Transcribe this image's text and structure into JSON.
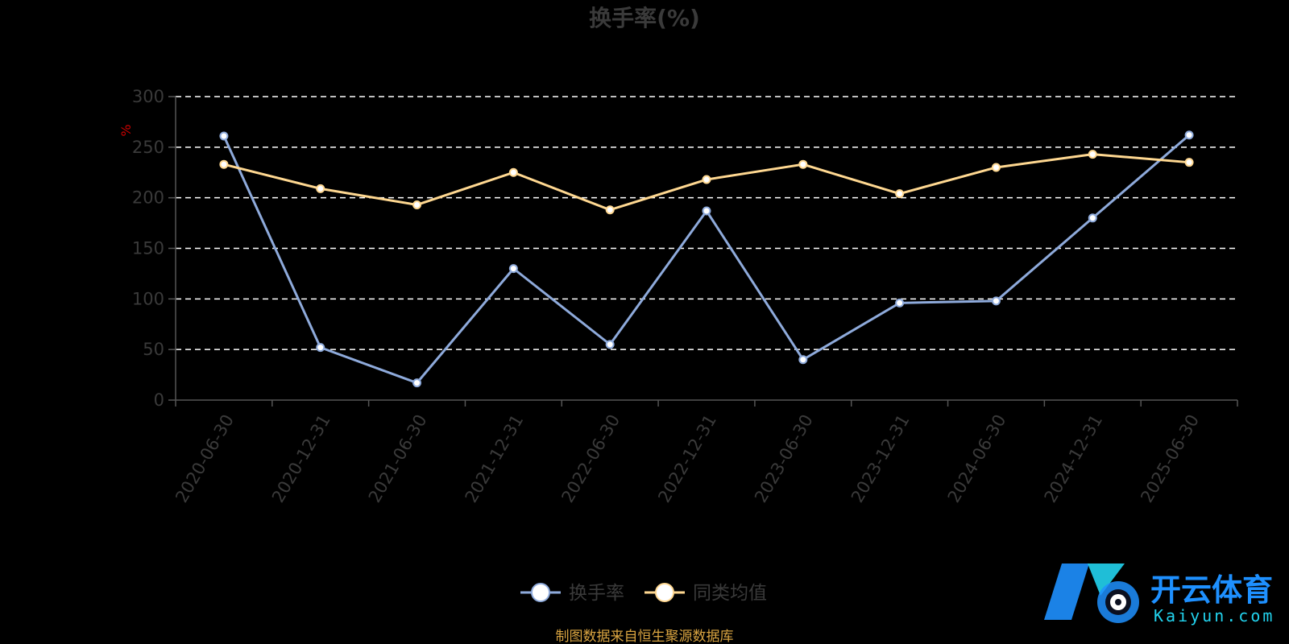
{
  "chart_data": {
    "type": "line",
    "title": "换手率(%)",
    "ylabel": "%",
    "ylim": [
      0,
      300
    ],
    "yticks": [
      0,
      50,
      100,
      150,
      200,
      250,
      300
    ],
    "grid": true,
    "legend_position": "bottom-center",
    "categories": [
      "2020-06-30",
      "2020-12-31",
      "2021-06-30",
      "2021-12-31",
      "2022-06-30",
      "2022-12-31",
      "2023-06-30",
      "2023-12-31",
      "2024-06-30",
      "2024-12-31",
      "2025-06-30"
    ],
    "series": [
      {
        "name": "换手率",
        "color": "#8eaadb",
        "values": [
          261,
          52,
          17,
          130,
          55,
          187,
          40,
          96,
          98,
          180,
          262
        ]
      },
      {
        "name": "同类均值",
        "color": "#ffd891",
        "values": [
          233,
          209,
          193,
          225,
          188,
          218,
          233,
          204,
          230,
          243,
          235
        ]
      }
    ]
  },
  "footer": {
    "source": "制图数据来自恒生聚源数据库"
  },
  "watermark": {
    "name_cn": "开云体育",
    "name_en": "Kaiyun.com",
    "colors": {
      "primary": "#1e90ff",
      "accent": "#22d3ee"
    }
  }
}
